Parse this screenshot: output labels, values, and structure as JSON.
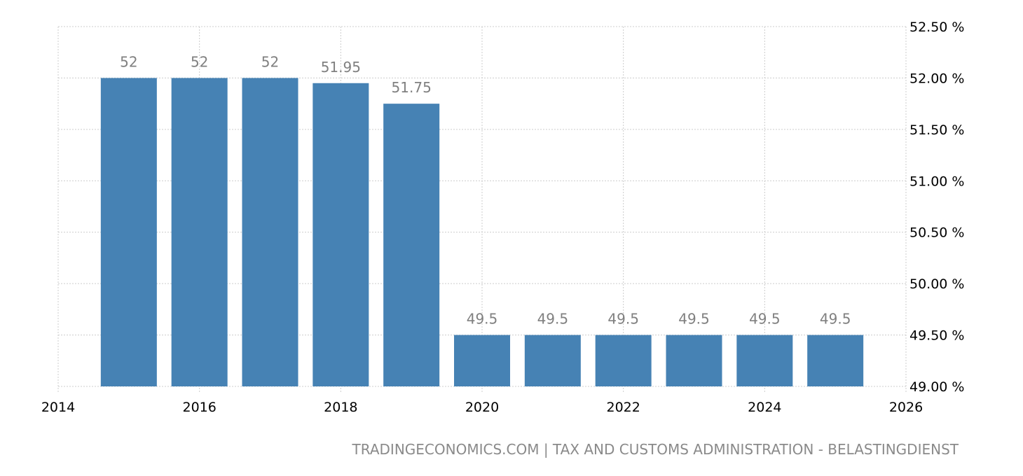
{
  "chart_data": {
    "type": "bar",
    "title": "",
    "xlabel": "",
    "ylabel": "",
    "categories": [
      "2015",
      "2016",
      "2017",
      "2018",
      "2019",
      "2020",
      "2021",
      "2022",
      "2023",
      "2024",
      "2025"
    ],
    "x": [
      2015,
      2016,
      2017,
      2018,
      2019,
      2020,
      2021,
      2022,
      2023,
      2024,
      2025
    ],
    "values": [
      52,
      52,
      52,
      51.95,
      51.75,
      49.5,
      49.5,
      49.5,
      49.5,
      49.5,
      49.5
    ],
    "data_labels": [
      "52",
      "52",
      "52",
      "51.95",
      "51.75",
      "49.5",
      "49.5",
      "49.5",
      "49.5",
      "49.5",
      "49.5"
    ],
    "xlim": [
      2014,
      2026
    ],
    "ylim": [
      49,
      52.5
    ],
    "x_ticks": [
      "2014",
      "2016",
      "2018",
      "2020",
      "2022",
      "2024",
      "2026"
    ],
    "y_ticks": [
      "49.00 %",
      "49.50 %",
      "50.00 %",
      "50.50 %",
      "51.00 %",
      "51.50 %",
      "52.00 %",
      "52.50 %"
    ],
    "y_axis_side": "right",
    "grid": true,
    "bar_color": "#4682b4"
  },
  "footer": {
    "source": "TRADINGECONOMICS.COM | TAX AND CUSTOMS ADMINISTRATION - BELASTINGDIENST"
  }
}
